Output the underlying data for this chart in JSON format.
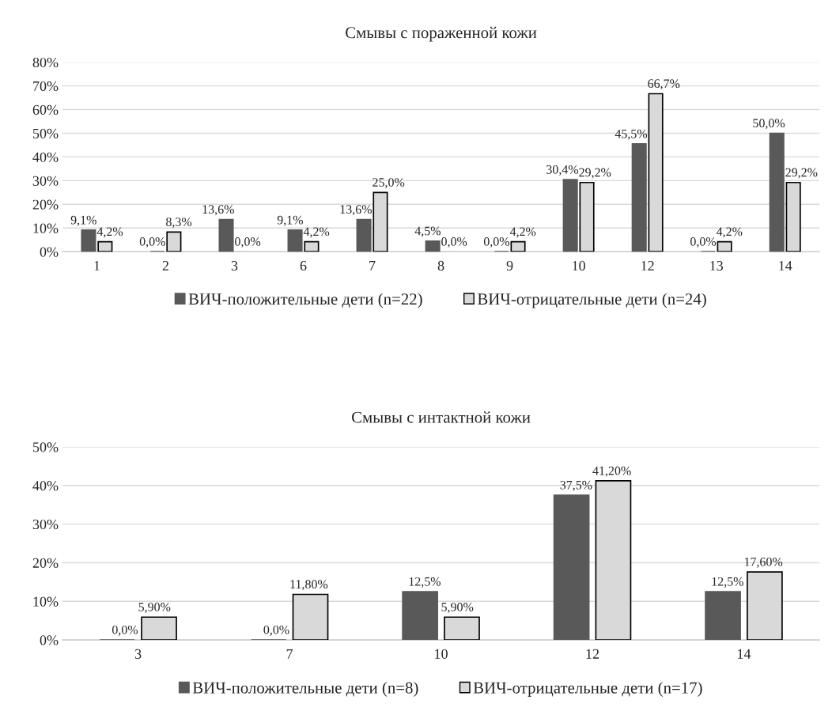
{
  "chart_data": [
    {
      "type": "bar",
      "title": "Смывы с пораженной кожи",
      "categories": [
        "1",
        "2",
        "3",
        "6",
        "7",
        "8",
        "9",
        "10",
        "12",
        "13",
        "14"
      ],
      "series": [
        {
          "name": "ВИЧ-положительные дети (n=22)",
          "color": "#595959",
          "values": [
            9.1,
            0.0,
            13.6,
            9.1,
            13.6,
            4.5,
            0.0,
            30.4,
            45.5,
            0.0,
            50.0
          ],
          "value_labels": [
            "9,1%",
            "0,0%",
            "13,6%",
            "9,1%",
            "13,6%",
            "4,5%",
            "0,0%",
            "30,4%",
            "45,5%",
            "0,0%",
            "50,0%"
          ]
        },
        {
          "name": "ВИЧ-отрицательные дети (n=24)",
          "color": "#d9d9d9",
          "values": [
            4.2,
            8.3,
            0.0,
            4.2,
            25.0,
            0.0,
            4.2,
            29.2,
            66.7,
            4.2,
            29.2
          ],
          "value_labels": [
            "4,2%",
            "8,3%",
            "0,0%",
            "4,2%",
            "25,0%",
            "0,0%",
            "4,2%",
            "29,2%",
            "66,7%",
            "4,2%",
            "29,2%"
          ]
        }
      ],
      "ylim": [
        0,
        80
      ],
      "yticks": [
        {
          "value": 0,
          "label": "0%"
        },
        {
          "value": 10,
          "label": "10%"
        },
        {
          "value": 20,
          "label": "20%"
        },
        {
          "value": 30,
          "label": "30%"
        },
        {
          "value": 40,
          "label": "40%"
        },
        {
          "value": 50,
          "label": "50%"
        },
        {
          "value": 60,
          "label": "60%"
        },
        {
          "value": 70,
          "label": "70%"
        },
        {
          "value": 80,
          "label": "80%"
        }
      ],
      "grid": "y",
      "legend": "bottom"
    },
    {
      "type": "bar",
      "title": "Смывы с интактной кожи",
      "categories": [
        "3",
        "7",
        "10",
        "12",
        "14"
      ],
      "series": [
        {
          "name": "ВИЧ-положительные дети (n=8)",
          "color": "#595959",
          "values": [
            0.0,
            0.0,
            12.5,
            37.5,
            12.5
          ],
          "value_labels": [
            "0,0%",
            "0,0%",
            "12,5%",
            "37,5%",
            "12,5%"
          ]
        },
        {
          "name": "ВИЧ-отрицательные дети (n=17)",
          "color": "#d9d9d9",
          "values": [
            5.9,
            11.8,
            5.9,
            41.2,
            17.6
          ],
          "value_labels": [
            "5,90%",
            "11,80%",
            "5,90%",
            "41,20%",
            "17,60%"
          ]
        }
      ],
      "ylim": [
        0,
        50
      ],
      "yticks": [
        {
          "value": 0,
          "label": "0%"
        },
        {
          "value": 10,
          "label": "10%"
        },
        {
          "value": 20,
          "label": "20%"
        },
        {
          "value": 30,
          "label": "30%"
        },
        {
          "value": 40,
          "label": "40%"
        },
        {
          "value": 50,
          "label": "50%"
        }
      ],
      "grid": "y",
      "legend": "bottom"
    }
  ]
}
